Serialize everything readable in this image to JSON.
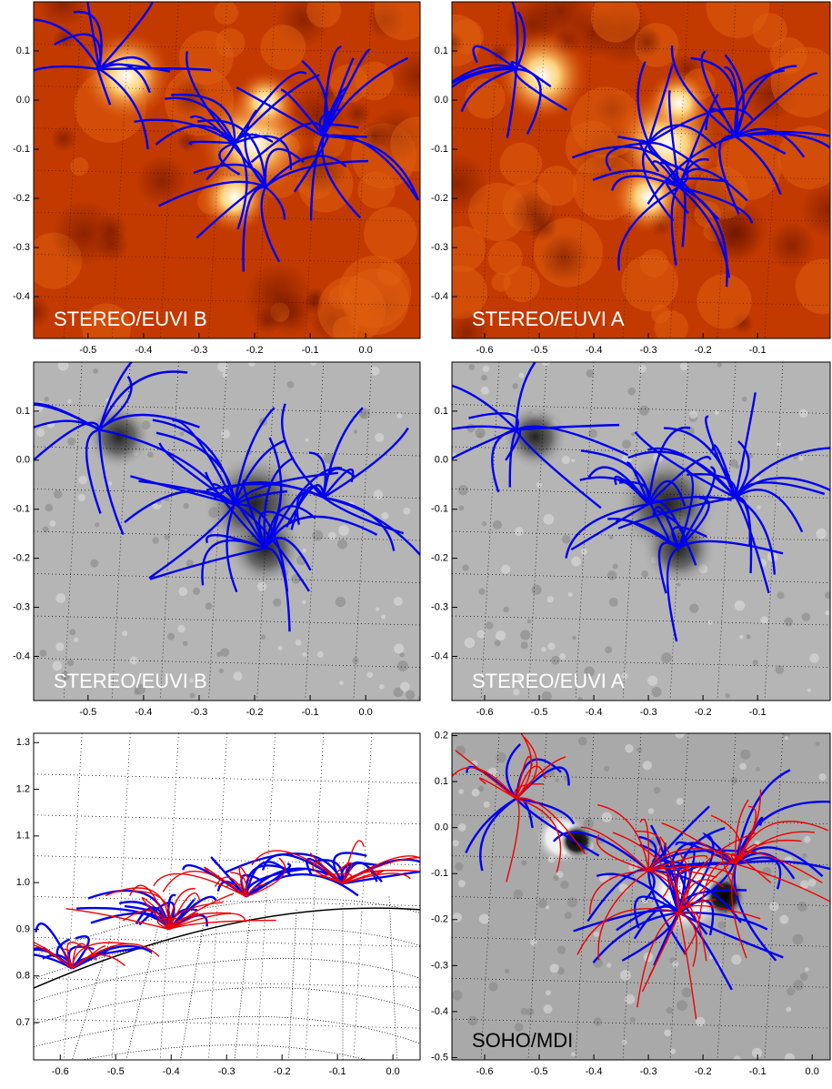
{
  "chart_data": [
    {
      "type": "image",
      "style": "euv",
      "annotation": "STEREO/EUVI B",
      "xlim": [
        -0.598,
        0.098
      ],
      "ylim": [
        -0.485,
        0.2
      ],
      "xticks": [
        -0.5,
        -0.4,
        -0.3,
        -0.2,
        -0.1,
        {
          "value": 0,
          "label": "0.0"
        }
      ],
      "yticks": [
        0.1,
        {
          "value": 0,
          "label": "0.0"
        },
        -0.1,
        -0.2,
        -0.3,
        -0.4
      ]
    },
    {
      "type": "image",
      "style": "euv",
      "annotation": "STEREO/EUVI A",
      "xlim": [
        -0.66,
        0.033
      ],
      "ylim": [
        -0.485,
        0.2
      ],
      "xticks": [
        -0.6,
        -0.5,
        -0.4,
        -0.3,
        -0.2,
        -0.1
      ],
      "yticks": [
        0.1,
        {
          "value": 0,
          "label": "0.0"
        },
        -0.1,
        -0.2,
        -0.3,
        -0.4
      ]
    },
    {
      "type": "image",
      "style": "diff",
      "annotation": "STEREO/EUVI B",
      "xlim": [
        -0.598,
        0.098
      ],
      "ylim": [
        -0.49,
        0.2
      ],
      "xticks": [
        -0.5,
        -0.4,
        -0.3,
        -0.2,
        -0.1,
        {
          "value": 0,
          "label": "0.0"
        }
      ],
      "yticks": [
        0.1,
        {
          "value": 0,
          "label": "0.0"
        },
        -0.1,
        -0.2,
        -0.3,
        -0.4
      ]
    },
    {
      "type": "image",
      "style": "diff",
      "annotation": "STEREO/EUVI A",
      "xlim": [
        -0.66,
        0.033
      ],
      "ylim": [
        -0.49,
        0.2
      ],
      "xticks": [
        -0.6,
        -0.5,
        -0.4,
        -0.3,
        -0.2,
        -0.1
      ],
      "yticks": [
        0.1,
        {
          "value": 0,
          "label": "0.0"
        },
        -0.1,
        -0.2,
        -0.3,
        -0.4
      ]
    },
    {
      "type": "image",
      "style": "side",
      "xlim": [
        -0.648,
        0.049
      ],
      "ylim": [
        0.62,
        1.32
      ],
      "xticks": [
        -0.6,
        -0.5,
        -0.4,
        -0.3,
        -0.2,
        -0.1,
        {
          "value": 0,
          "label": "0.0"
        }
      ],
      "yticks": [
        1.3,
        1.2,
        1.1,
        {
          "value": 1,
          "label": "1.0"
        },
        0.9,
        0.8,
        0.7
      ]
    },
    {
      "type": "image",
      "style": "mdi",
      "annotation": "SOHO/MDI",
      "xlim": [
        -0.66,
        0.033
      ],
      "ylim": [
        -0.505,
        0.205
      ],
      "xticks": [
        -0.6,
        -0.5,
        -0.4,
        -0.3,
        -0.2,
        -0.1,
        {
          "value": 0,
          "label": "0.0"
        }
      ],
      "yticks": [
        0.2,
        0.1,
        {
          "value": 0,
          "label": "0.0"
        },
        -0.1,
        -0.2,
        -0.3,
        -0.4,
        -0.5
      ]
    }
  ]
}
